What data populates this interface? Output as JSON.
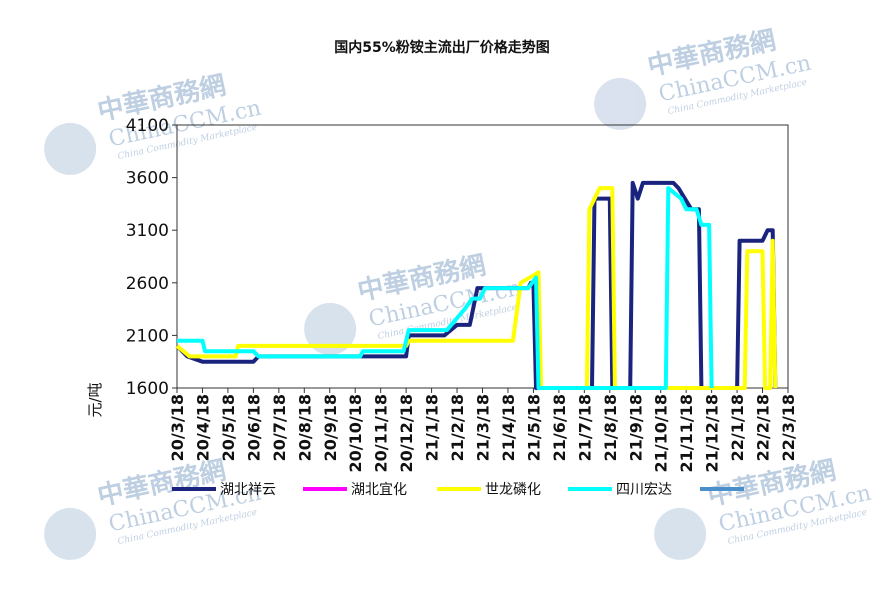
{
  "chart_data": {
    "type": "line",
    "title": "国内55%粉铵主流出厂价格走势图",
    "ylabel": "元/吨",
    "ylim": [
      1600,
      4100
    ],
    "yticks": [
      1600,
      2100,
      2600,
      3100,
      3600,
      4100
    ],
    "x_ticks": [
      "20/3/18",
      "20/4/18",
      "20/5/18",
      "20/6/18",
      "20/7/18",
      "20/8/18",
      "20/9/18",
      "20/10/18",
      "20/11/18",
      "20/12/18",
      "21/1/18",
      "21/2/18",
      "21/3/18",
      "21/4/18",
      "21/5/18",
      "21/6/18",
      "21/7/18",
      "21/8/18",
      "21/9/18",
      "21/10/18",
      "21/11/18",
      "21/12/18",
      "22/1/18",
      "22/2/18",
      "22/3/18"
    ],
    "legend_position": "bottom",
    "series": [
      {
        "name": "湖北祥云",
        "color": "#1a237e",
        "points": [
          [
            0,
            2000
          ],
          [
            0.4,
            1900
          ],
          [
            1.0,
            1850
          ],
          [
            3.0,
            1850
          ],
          [
            3.2,
            1900
          ],
          [
            7.0,
            1900
          ],
          [
            7.2,
            1900
          ],
          [
            8.0,
            1900
          ],
          [
            8.8,
            1900
          ],
          [
            9.0,
            1900
          ],
          [
            9.1,
            2100
          ],
          [
            10.5,
            2100
          ],
          [
            11.0,
            2200
          ],
          [
            11.5,
            2200
          ],
          [
            11.8,
            2550
          ],
          [
            12.3,
            2550
          ],
          [
            12.4,
            2550
          ],
          [
            13.8,
            2550
          ],
          [
            13.9,
            2600
          ],
          [
            14.0,
            2600
          ],
          [
            14.1,
            1600
          ],
          [
            16.3,
            1600
          ],
          [
            16.4,
            3400
          ],
          [
            16.8,
            3400
          ],
          [
            17.0,
            3400
          ],
          [
            17.1,
            1600
          ],
          [
            17.8,
            1600
          ],
          [
            17.9,
            3550
          ],
          [
            18.1,
            3400
          ],
          [
            18.3,
            3550
          ],
          [
            19.5,
            3550
          ],
          [
            19.7,
            3500
          ],
          [
            20.2,
            3300
          ],
          [
            20.5,
            3300
          ],
          [
            20.6,
            1600
          ],
          [
            22.0,
            1600
          ],
          [
            22.1,
            3000
          ],
          [
            23.0,
            3000
          ],
          [
            23.2,
            3100
          ],
          [
            23.4,
            3100
          ],
          [
            23.5,
            1600
          ]
        ]
      },
      {
        "name": "湖北宜化",
        "color": "#ff00ff",
        "points": []
      },
      {
        "name": "世龙磷化",
        "color": "#ffff00",
        "points": [
          [
            0,
            2000
          ],
          [
            0.5,
            1900
          ],
          [
            2.3,
            1900
          ],
          [
            2.4,
            2000
          ],
          [
            9.0,
            2000
          ],
          [
            9.1,
            2050
          ],
          [
            13.2,
            2050
          ],
          [
            13.5,
            2600
          ],
          [
            14.2,
            2700
          ],
          [
            14.3,
            1600
          ],
          [
            16.1,
            1600
          ],
          [
            16.2,
            3300
          ],
          [
            16.6,
            3500
          ],
          [
            17.1,
            3500
          ],
          [
            17.2,
            1600
          ],
          [
            22.3,
            1600
          ],
          [
            22.4,
            2900
          ],
          [
            23.0,
            2900
          ],
          [
            23.1,
            1600
          ],
          [
            23.3,
            1600
          ],
          [
            23.4,
            3000
          ],
          [
            23.5,
            1600
          ]
        ]
      },
      {
        "name": "四川宏达",
        "color": "#00ffff",
        "points": [
          [
            0,
            2050
          ],
          [
            1.0,
            2050
          ],
          [
            1.1,
            1950
          ],
          [
            2.6,
            1950
          ],
          [
            2.7,
            1950
          ],
          [
            3.0,
            1950
          ],
          [
            3.2,
            1900
          ],
          [
            7.2,
            1900
          ],
          [
            7.3,
            1950
          ],
          [
            8.9,
            1950
          ],
          [
            9.1,
            2150
          ],
          [
            10.6,
            2150
          ],
          [
            11.3,
            2350
          ],
          [
            11.6,
            2450
          ],
          [
            11.9,
            2450
          ],
          [
            12.1,
            2550
          ],
          [
            13.8,
            2550
          ],
          [
            14.1,
            2650
          ],
          [
            14.2,
            1600
          ],
          [
            19.2,
            1600
          ],
          [
            19.3,
            3500
          ],
          [
            19.8,
            3400
          ],
          [
            20.0,
            3300
          ],
          [
            20.4,
            3300
          ],
          [
            20.6,
            3150
          ],
          [
            20.9,
            3150
          ],
          [
            21.0,
            1600
          ]
        ]
      },
      {
        "name": "",
        "color": "#4a8fc9",
        "points": []
      }
    ]
  },
  "watermark": {
    "cn": "中華商務網",
    "en": "ChinaCCM.cn",
    "sub": "China Commodity Marketplace"
  }
}
